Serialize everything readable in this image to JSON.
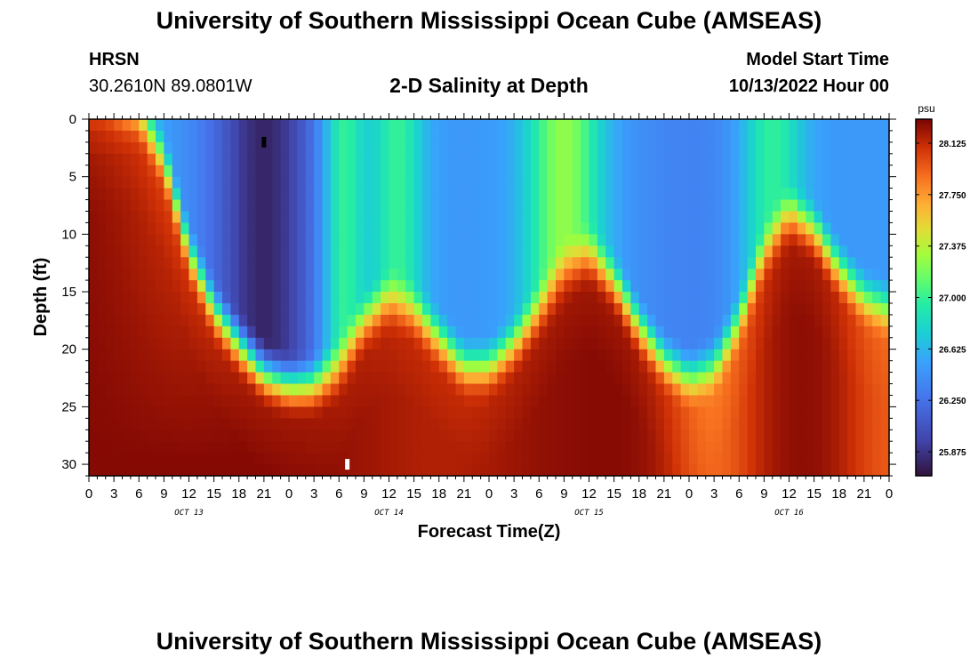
{
  "header": {
    "title": "University of Southern Mississippi Ocean Cube (AMSEAS)",
    "footer_title": "University of Southern Mississippi Ocean Cube (AMSEAS)",
    "station": "HRSN",
    "coordinates": "30.2610N  89.0801W",
    "subtitle": "2-D Salinity at Depth",
    "model_start_label": "Model Start Time",
    "model_start_value": "10/13/2022 Hour 00"
  },
  "chart_data": {
    "type": "heatmap",
    "title": "2-D Salinity at Depth",
    "xlabel": "Forecast Time(Z)",
    "ylabel": "Depth (ft)",
    "x_range_hours": [
      0,
      96
    ],
    "ylim": [
      31,
      0
    ],
    "x_tick_labels": [
      "0",
      "3",
      "6",
      "9",
      "12",
      "15",
      "18",
      "21",
      "0",
      "3",
      "6",
      "9",
      "12",
      "15",
      "18",
      "21",
      "0",
      "3",
      "6",
      "9",
      "12",
      "15",
      "18",
      "21",
      "0",
      "3",
      "6",
      "9",
      "12",
      "15",
      "18",
      "21",
      "0"
    ],
    "day_labels": [
      {
        "label": "OCT 13",
        "hour": 12
      },
      {
        "label": "OCT 14",
        "hour": 36
      },
      {
        "label": "OCT 15",
        "hour": 60
      },
      {
        "label": "OCT 16",
        "hour": 84
      }
    ],
    "y_ticks": [
      0,
      5,
      10,
      15,
      20,
      25,
      30
    ],
    "colorbar": {
      "unit": "psu",
      "min": 25.7,
      "max": 28.3,
      "ticks": [
        "28.125",
        "27.750",
        "27.375",
        "27.000",
        "26.625",
        "26.250",
        "25.875"
      ]
    },
    "halocline_depth_ft": {
      "hours": [
        0,
        6,
        9,
        12,
        15,
        18,
        21,
        24,
        27,
        30,
        33,
        36,
        39,
        42,
        45,
        48,
        51,
        54,
        57,
        60,
        63,
        66,
        69,
        72,
        75,
        78,
        81,
        84,
        87,
        90,
        93,
        96
      ],
      "depth": [
        0,
        0,
        4,
        12,
        17,
        20,
        22.5,
        23.5,
        23.5,
        22,
        18,
        16,
        17,
        19.5,
        22,
        22,
        20,
        17,
        13.5,
        12,
        14.5,
        18.5,
        21.5,
        23,
        22,
        18,
        12,
        8.5,
        10,
        13.5,
        16,
        17
      ]
    },
    "markers": [
      {
        "hour": 21,
        "depth_ft": 2,
        "color": "black"
      },
      {
        "hour": 31,
        "depth_ft": 30,
        "color": "white"
      }
    ]
  }
}
